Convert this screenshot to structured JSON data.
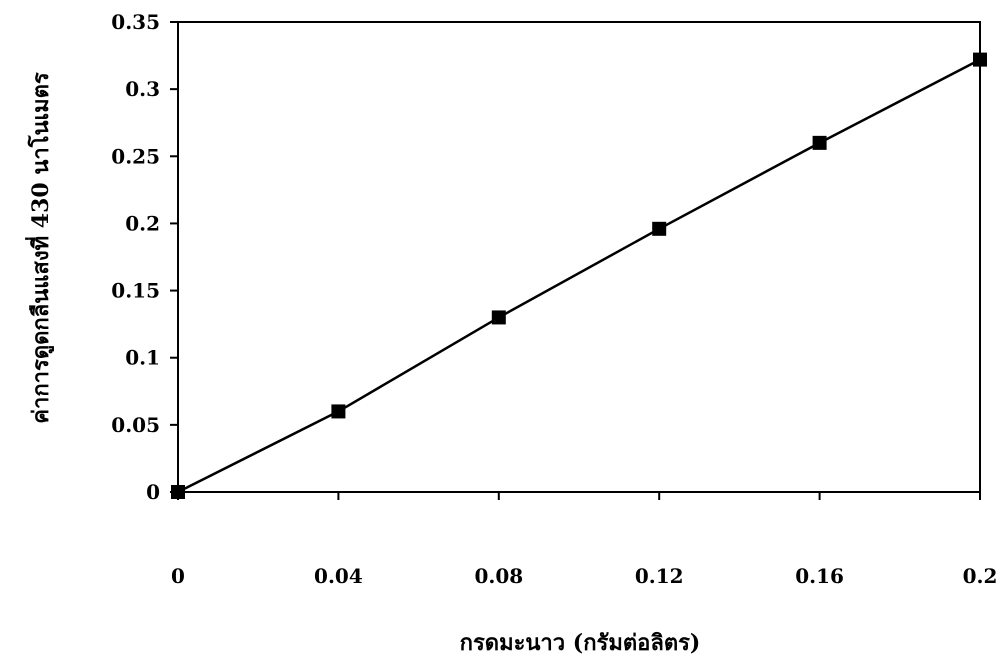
{
  "chart_data": {
    "type": "line",
    "title": "",
    "xlabel": "กรดมะนาว (กรัมต่อลิตร)",
    "ylabel": "ค่าการดูดกลืนแสงที่ 430 นาโนเมตร",
    "xlim": [
      0,
      0.2
    ],
    "ylim": [
      0,
      0.35
    ],
    "x_ticks": [
      "0",
      "0.04",
      "0.08",
      "0.12",
      "0.16",
      "0.2"
    ],
    "y_ticks": [
      "0",
      "0.05",
      "0.1",
      "0.15",
      "0.2",
      "0.25",
      "0.3",
      "0.35"
    ],
    "grid": false,
    "legend": "none",
    "marker": "square",
    "series": [
      {
        "x": [
          0,
          0.04,
          0.08,
          0.12,
          0.16,
          0.2
        ],
        "y": [
          0,
          0.06,
          0.13,
          0.196,
          0.26,
          0.322
        ]
      }
    ]
  },
  "colors": {
    "line": "#000000",
    "marker": "#000000",
    "frame": "#000000"
  }
}
